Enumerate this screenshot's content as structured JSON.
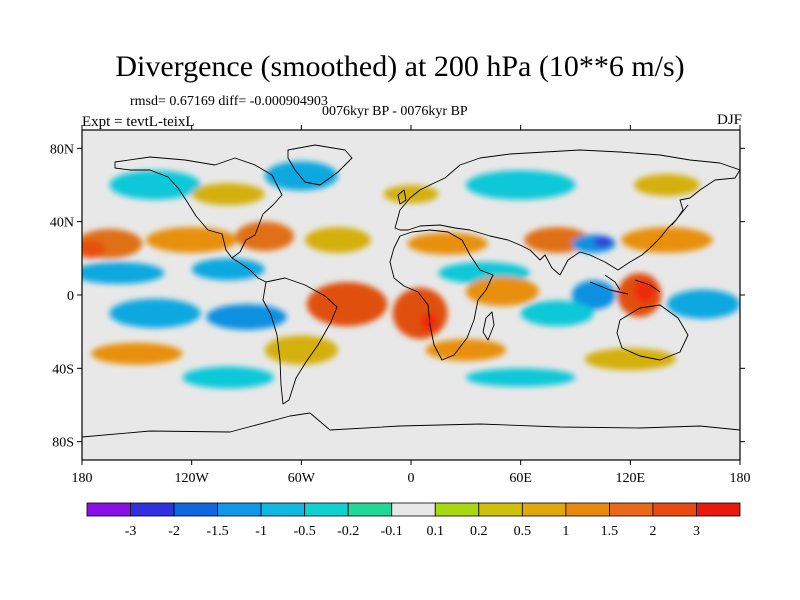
{
  "title": "Divergence (smoothed) at 200 hPa (10**6 m/s)",
  "stats": "rmsd= 0.67169 diff= -0.000904903",
  "period": "0076kyr BP - 0076kyr BP",
  "expt": "Expt = tevtL-teixL",
  "season": "DJF",
  "map": {
    "projection": "cylindrical-equidistant",
    "lon_range": [
      -180,
      180
    ],
    "lat_range": [
      -90,
      90
    ],
    "lon_ticks": [
      {
        "value": -180,
        "label": "180"
      },
      {
        "value": -120,
        "label": "120W"
      },
      {
        "value": -60,
        "label": "60W"
      },
      {
        "value": 0,
        "label": "0"
      },
      {
        "value": 60,
        "label": "60E"
      },
      {
        "value": 120,
        "label": "120E"
      },
      {
        "value": 180,
        "label": "180"
      }
    ],
    "lat_ticks": [
      {
        "value": 80,
        "label": "80N"
      },
      {
        "value": 40,
        "label": "40N"
      },
      {
        "value": 0,
        "label": "0"
      },
      {
        "value": -40,
        "label": "40S"
      },
      {
        "value": -80,
        "label": "80S"
      }
    ],
    "background_color": "#e8e8e8",
    "features": [
      {
        "lon": -165,
        "lat": 28,
        "rx": 18,
        "ry": 8,
        "color": "#e07018"
      },
      {
        "lon": -120,
        "lat": 30,
        "rx": 25,
        "ry": 7,
        "color": "#e89010"
      },
      {
        "lon": -80,
        "lat": 32,
        "rx": 16,
        "ry": 8,
        "color": "#e07018"
      },
      {
        "lon": -40,
        "lat": 30,
        "rx": 18,
        "ry": 7,
        "color": "#d4b008"
      },
      {
        "lon": 20,
        "lat": 28,
        "rx": 22,
        "ry": 6,
        "color": "#e89010"
      },
      {
        "lon": 80,
        "lat": 30,
        "rx": 18,
        "ry": 7,
        "color": "#e07018"
      },
      {
        "lon": 140,
        "lat": 30,
        "rx": 25,
        "ry": 7,
        "color": "#e89010"
      },
      {
        "lon": -175,
        "lat": 25,
        "rx": 8,
        "ry": 5,
        "color": "#e85010"
      },
      {
        "lon": 100,
        "lat": 28,
        "rx": 12,
        "ry": 5,
        "color": "#1090e0"
      },
      {
        "lon": 105,
        "lat": 29,
        "rx": 5,
        "ry": 3,
        "color": "#3040d8"
      },
      {
        "lon": -160,
        "lat": 12,
        "rx": 25,
        "ry": 6,
        "color": "#10a8e0"
      },
      {
        "lon": -100,
        "lat": 14,
        "rx": 20,
        "ry": 6,
        "color": "#10a8e0"
      },
      {
        "lon": 40,
        "lat": 12,
        "rx": 25,
        "ry": 6,
        "color": "#10c8d8"
      },
      {
        "lon": -35,
        "lat": -5,
        "rx": 22,
        "ry": 12,
        "color": "#e05010"
      },
      {
        "lon": 5,
        "lat": -10,
        "rx": 15,
        "ry": 14,
        "color": "#e05010"
      },
      {
        "lon": 10,
        "lat": -15,
        "rx": 5,
        "ry": 5,
        "color": "#ee2a10"
      },
      {
        "lon": 50,
        "lat": 2,
        "rx": 20,
        "ry": 8,
        "color": "#e89010"
      },
      {
        "lon": 125,
        "lat": 0,
        "rx": 12,
        "ry": 12,
        "color": "#e05010"
      },
      {
        "lon": 128,
        "lat": 2,
        "rx": 6,
        "ry": 6,
        "color": "#ee2a10"
      },
      {
        "lon": 100,
        "lat": 0,
        "rx": 12,
        "ry": 8,
        "color": "#1090e0"
      },
      {
        "lon": -140,
        "lat": -10,
        "rx": 25,
        "ry": 8,
        "color": "#10a8e0"
      },
      {
        "lon": -90,
        "lat": -12,
        "rx": 22,
        "ry": 7,
        "color": "#1090e0"
      },
      {
        "lon": 80,
        "lat": -10,
        "rx": 20,
        "ry": 7,
        "color": "#10c8d8"
      },
      {
        "lon": 160,
        "lat": -5,
        "rx": 20,
        "ry": 8,
        "color": "#10a8e0"
      },
      {
        "lon": -150,
        "lat": -32,
        "rx": 25,
        "ry": 6,
        "color": "#e89010"
      },
      {
        "lon": -60,
        "lat": -30,
        "rx": 20,
        "ry": 8,
        "color": "#d4b008"
      },
      {
        "lon": 30,
        "lat": -30,
        "rx": 22,
        "ry": 6,
        "color": "#e89010"
      },
      {
        "lon": 120,
        "lat": -35,
        "rx": 25,
        "ry": 6,
        "color": "#d4b008"
      },
      {
        "lon": -100,
        "lat": -45,
        "rx": 25,
        "ry": 6,
        "color": "#10c8d8"
      },
      {
        "lon": 60,
        "lat": -45,
        "rx": 30,
        "ry": 5,
        "color": "#10c8d8"
      },
      {
        "lon": -140,
        "lat": 60,
        "rx": 25,
        "ry": 8,
        "color": "#10c8d8"
      },
      {
        "lon": -60,
        "lat": 65,
        "rx": 20,
        "ry": 8,
        "color": "#10a8e0"
      },
      {
        "lon": 60,
        "lat": 60,
        "rx": 30,
        "ry": 8,
        "color": "#10c8d8"
      },
      {
        "lon": -100,
        "lat": 55,
        "rx": 20,
        "ry": 6,
        "color": "#d4b008"
      },
      {
        "lon": 0,
        "lat": 55,
        "rx": 15,
        "ry": 5,
        "color": "#d4b008"
      },
      {
        "lon": 140,
        "lat": 60,
        "rx": 18,
        "ry": 6,
        "color": "#d4b008"
      }
    ]
  },
  "colorbar": {
    "colors": [
      "#8a10e8",
      "#3030e0",
      "#1068e0",
      "#1098e8",
      "#10b8e0",
      "#10d0d0",
      "#20d898",
      "#e8e8e8",
      "#a8d810",
      "#d0c008",
      "#e0a808",
      "#e88a10",
      "#e86a18",
      "#e84a10",
      "#e81a10"
    ],
    "labels": [
      "-3",
      "-2",
      "-1.5",
      "-1",
      "-0.5",
      "-0.2",
      "-0.1",
      "0.1",
      "0.2",
      "0.5",
      "1",
      "1.5",
      "2",
      "3"
    ]
  }
}
